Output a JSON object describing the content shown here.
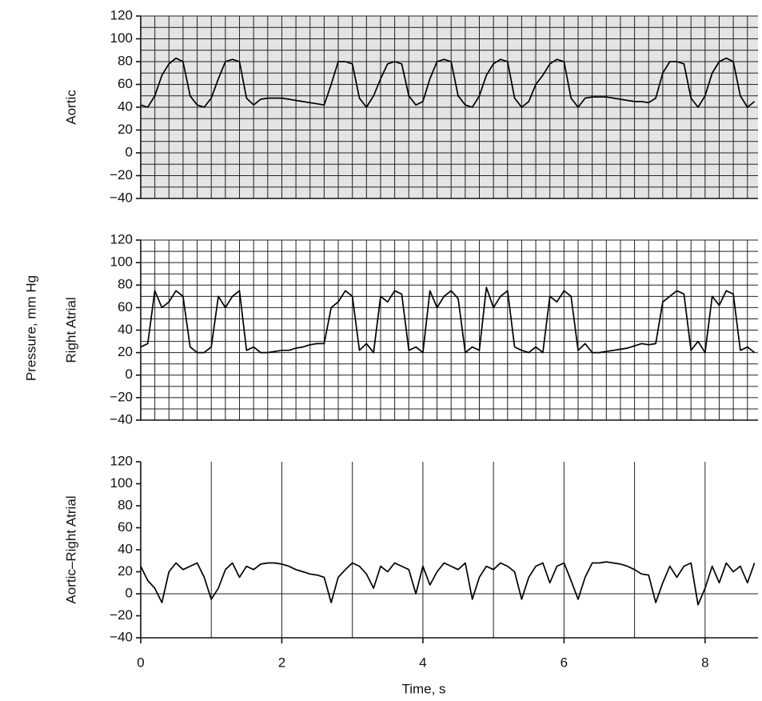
{
  "shared_ylabel": "Pressure, mm Hg",
  "chart_data": [
    {
      "type": "line",
      "ylabel": "Aortic",
      "color": "#000000",
      "shade": true,
      "x": [
        0,
        0.1,
        0.2,
        0.3,
        0.4,
        0.5,
        0.6,
        0.7,
        0.8,
        0.9,
        1,
        1.1,
        1.2,
        1.3,
        1.4,
        1.5,
        1.6,
        1.7,
        1.8,
        1.9,
        2,
        2.1,
        2.2,
        2.3,
        2.4,
        2.5,
        2.6,
        2.7,
        2.8,
        2.9,
        3,
        3.1,
        3.2,
        3.3,
        3.4,
        3.5,
        3.6,
        3.7,
        3.8,
        3.9,
        4,
        4.1,
        4.2,
        4.3,
        4.4,
        4.5,
        4.6,
        4.7,
        4.8,
        4.9,
        5,
        5.1,
        5.2,
        5.3,
        5.4,
        5.5,
        5.6,
        5.7,
        5.8,
        5.9,
        6,
        6.1,
        6.2,
        6.3,
        6.4,
        6.5,
        6.6,
        6.7,
        6.8,
        6.9,
        7,
        7.1,
        7.2,
        7.3,
        7.4,
        7.5,
        7.6,
        7.7,
        7.8,
        7.9,
        8,
        8.1,
        8.2,
        8.3,
        8.4,
        8.5,
        8.6,
        8.7
      ],
      "values": [
        42,
        40,
        50,
        68,
        78,
        83,
        80,
        50,
        42,
        40,
        48,
        65,
        80,
        82,
        80,
        48,
        42,
        47,
        48,
        48,
        48,
        47,
        46,
        45,
        44,
        43,
        42,
        60,
        80,
        80,
        78,
        48,
        40,
        50,
        65,
        78,
        80,
        78,
        50,
        42,
        45,
        65,
        80,
        82,
        80,
        50,
        42,
        40,
        50,
        68,
        78,
        82,
        80,
        48,
        40,
        45,
        60,
        68,
        78,
        82,
        80,
        48,
        40,
        48,
        49,
        49,
        49,
        48,
        47,
        46,
        45,
        45,
        44,
        48,
        70,
        80,
        80,
        78,
        48,
        40,
        50,
        70,
        80,
        83,
        80,
        50,
        40,
        45
      ],
      "xlim": [
        0,
        8.75
      ],
      "ylim": [
        -40,
        120
      ],
      "yticks": [
        {
          "value": -40,
          "label": "−40"
        },
        {
          "value": -20,
          "label": "−20"
        },
        0,
        20,
        40,
        60,
        80,
        100,
        120
      ],
      "xgrid": [
        0,
        0.2,
        0.4,
        0.6,
        0.8,
        1,
        1.2,
        1.4,
        1.6,
        1.8,
        2,
        2.2,
        2.4,
        2.6,
        2.8,
        3,
        3.2,
        3.4,
        3.6,
        3.8,
        4,
        4.2,
        4.4,
        4.6,
        4.8,
        5,
        5.2,
        5.4,
        5.6,
        5.8,
        6,
        6.2,
        6.4,
        6.6,
        6.8,
        7,
        7.2,
        7.4,
        7.6,
        7.8,
        8,
        8.2,
        8.4,
        8.6
      ],
      "ygrid": [
        -30,
        -20,
        -10,
        0,
        10,
        20,
        30,
        40,
        50,
        60,
        70,
        80,
        90,
        100,
        110,
        120
      ]
    },
    {
      "type": "line",
      "ylabel": "Right Atrial",
      "color": "#000000",
      "shade": false,
      "x": [
        0,
        0.1,
        0.2,
        0.3,
        0.4,
        0.5,
        0.6,
        0.7,
        0.8,
        0.9,
        1,
        1.1,
        1.2,
        1.3,
        1.4,
        1.5,
        1.6,
        1.7,
        1.8,
        1.9,
        2,
        2.1,
        2.2,
        2.3,
        2.4,
        2.5,
        2.6,
        2.7,
        2.8,
        2.9,
        3,
        3.1,
        3.2,
        3.3,
        3.4,
        3.5,
        3.6,
        3.7,
        3.8,
        3.9,
        4,
        4.1,
        4.2,
        4.3,
        4.4,
        4.5,
        4.6,
        4.7,
        4.8,
        4.9,
        5,
        5.1,
        5.2,
        5.3,
        5.4,
        5.5,
        5.6,
        5.7,
        5.8,
        5.9,
        6,
        6.1,
        6.2,
        6.3,
        6.4,
        6.5,
        6.6,
        6.7,
        6.8,
        6.9,
        7,
        7.1,
        7.2,
        7.3,
        7.4,
        7.5,
        7.6,
        7.7,
        7.8,
        7.9,
        8,
        8.1,
        8.2,
        8.3,
        8.4,
        8.5,
        8.6,
        8.7
      ],
      "values": [
        25,
        28,
        75,
        60,
        65,
        75,
        70,
        25,
        20,
        20,
        25,
        70,
        60,
        70,
        75,
        22,
        25,
        20,
        20,
        21,
        22,
        22,
        24,
        25,
        27,
        28,
        28,
        60,
        65,
        75,
        70,
        22,
        28,
        20,
        70,
        65,
        75,
        72,
        22,
        25,
        20,
        75,
        60,
        70,
        75,
        68,
        20,
        25,
        22,
        78,
        60,
        70,
        75,
        25,
        22,
        20,
        25,
        20,
        70,
        65,
        75,
        70,
        22,
        28,
        20,
        20,
        21,
        22,
        23,
        24,
        26,
        28,
        27,
        28,
        65,
        70,
        75,
        72,
        22,
        30,
        20,
        70,
        62,
        75,
        72,
        22,
        25,
        20
      ],
      "xlim": [
        0,
        8.75
      ],
      "ylim": [
        -40,
        120
      ],
      "yticks": [
        {
          "value": -40,
          "label": "−40"
        },
        {
          "value": -20,
          "label": "−20"
        },
        0,
        20,
        40,
        60,
        80,
        100,
        120
      ],
      "xgrid": [
        0,
        0.2,
        0.4,
        0.6,
        0.8,
        1,
        1.2,
        1.4,
        1.6,
        1.8,
        2,
        2.2,
        2.4,
        2.6,
        2.8,
        3,
        3.2,
        3.4,
        3.6,
        3.8,
        4,
        4.2,
        4.4,
        4.6,
        4.8,
        5,
        5.2,
        5.4,
        5.6,
        5.8,
        6,
        6.2,
        6.4,
        6.6,
        6.8,
        7,
        7.2,
        7.4,
        7.6,
        7.8,
        8,
        8.2,
        8.4,
        8.6
      ],
      "ygrid": [
        -30,
        -20,
        -10,
        0,
        10,
        20,
        30,
        40,
        50,
        60,
        70,
        80,
        90,
        100,
        110,
        120
      ]
    },
    {
      "type": "line",
      "ylabel": "Aortic–Right Atrial",
      "xlabel": "Time, s",
      "color": "#000000",
      "shade": false,
      "x": [
        0,
        0.1,
        0.2,
        0.3,
        0.4,
        0.5,
        0.6,
        0.7,
        0.8,
        0.9,
        1,
        1.1,
        1.2,
        1.3,
        1.4,
        1.5,
        1.6,
        1.7,
        1.8,
        1.9,
        2,
        2.1,
        2.2,
        2.3,
        2.4,
        2.5,
        2.6,
        2.7,
        2.8,
        2.9,
        3,
        3.1,
        3.2,
        3.3,
        3.4,
        3.5,
        3.6,
        3.7,
        3.8,
        3.9,
        4,
        4.1,
        4.2,
        4.3,
        4.4,
        4.5,
        4.6,
        4.7,
        4.8,
        4.9,
        5,
        5.1,
        5.2,
        5.3,
        5.4,
        5.5,
        5.6,
        5.7,
        5.8,
        5.9,
        6,
        6.1,
        6.2,
        6.3,
        6.4,
        6.5,
        6.6,
        6.7,
        6.8,
        6.9,
        7,
        7.1,
        7.2,
        7.3,
        7.4,
        7.5,
        7.6,
        7.7,
        7.8,
        7.9,
        8,
        8.1,
        8.2,
        8.3,
        8.4,
        8.5,
        8.6,
        8.7
      ],
      "values": [
        25,
        12,
        5,
        -8,
        20,
        28,
        22,
        25,
        28,
        15,
        -5,
        5,
        22,
        28,
        15,
        25,
        22,
        27,
        28,
        28,
        27,
        25,
        22,
        20,
        18,
        17,
        15,
        -8,
        15,
        22,
        28,
        25,
        18,
        5,
        25,
        20,
        28,
        25,
        22,
        0,
        25,
        8,
        20,
        28,
        25,
        22,
        28,
        -5,
        15,
        25,
        22,
        28,
        25,
        20,
        -5,
        15,
        25,
        28,
        10,
        25,
        28,
        12,
        -5,
        15,
        28,
        28,
        29,
        28,
        27,
        25,
        22,
        18,
        17,
        -8,
        10,
        25,
        15,
        25,
        28,
        -10,
        5,
        25,
        10,
        28,
        20,
        25,
        10,
        28
      ],
      "xlim": [
        0,
        8.75
      ],
      "ylim": [
        -40,
        120
      ],
      "yticks": [
        {
          "value": -40,
          "label": "−40"
        },
        {
          "value": -20,
          "label": "−20"
        },
        0,
        20,
        40,
        60,
        80,
        100,
        120
      ],
      "xticks": [
        0,
        2,
        4,
        6,
        8
      ],
      "xgrid": [
        0,
        1,
        2,
        3,
        4,
        5,
        6,
        7,
        8
      ],
      "ygrid": [
        0
      ]
    }
  ]
}
